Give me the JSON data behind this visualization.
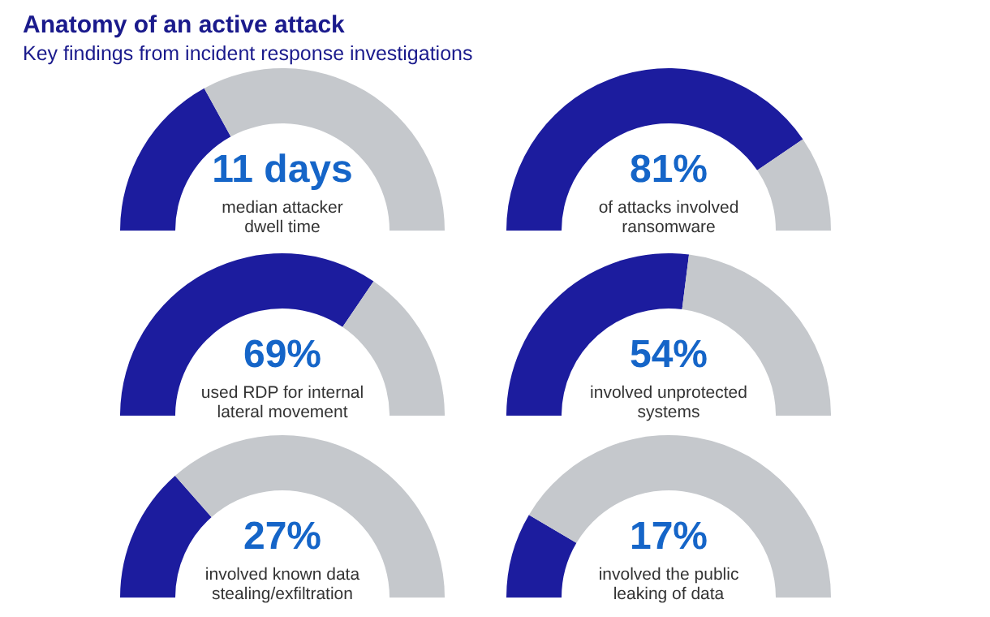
{
  "chart_data": [
    {
      "type": "donut",
      "title": "Anatomy of an active attack",
      "subtitle": "Key findings from incident response investigations",
      "categories": [
        null,
        null
      ],
      "values": [
        34,
        66
      ],
      "colors": [
        "#1c1c9e",
        "#c5c8cc"
      ],
      "annotations": [
        "11 days",
        "median attacker\ndwell time"
      ]
    },
    {
      "type": "donut",
      "categories": [
        null,
        null
      ],
      "values": [
        81,
        19
      ],
      "colors": [
        "#1c1c9e",
        "#c5c8cc"
      ],
      "annotations": [
        "81%",
        "of attacks involved\nransomware"
      ]
    },
    {
      "type": "donut",
      "categories": [
        null,
        null
      ],
      "values": [
        69,
        31
      ],
      "colors": [
        "#1c1c9e",
        "#c5c8cc"
      ],
      "annotations": [
        "69%",
        "used RDP for internal\nlateral movement"
      ]
    },
    {
      "type": "donut",
      "categories": [
        null,
        null
      ],
      "values": [
        54,
        46
      ],
      "colors": [
        "#1c1c9e",
        "#c5c8cc"
      ],
      "annotations": [
        "54%",
        "involved unprotected\nsystems"
      ]
    },
    {
      "type": "donut",
      "categories": [
        null,
        null
      ],
      "values": [
        27,
        73
      ],
      "colors": [
        "#1c1c9e",
        "#c5c8cc"
      ],
      "annotations": [
        "27%",
        "involved known data\nstealing/exfiltration"
      ]
    },
    {
      "type": "donut",
      "categories": [
        null,
        null
      ],
      "values": [
        17,
        83
      ],
      "colors": [
        "#1c1c9e",
        "#c5c8cc"
      ],
      "annotations": [
        "17%",
        "involved the public\nleaking of data"
      ]
    }
  ]
}
